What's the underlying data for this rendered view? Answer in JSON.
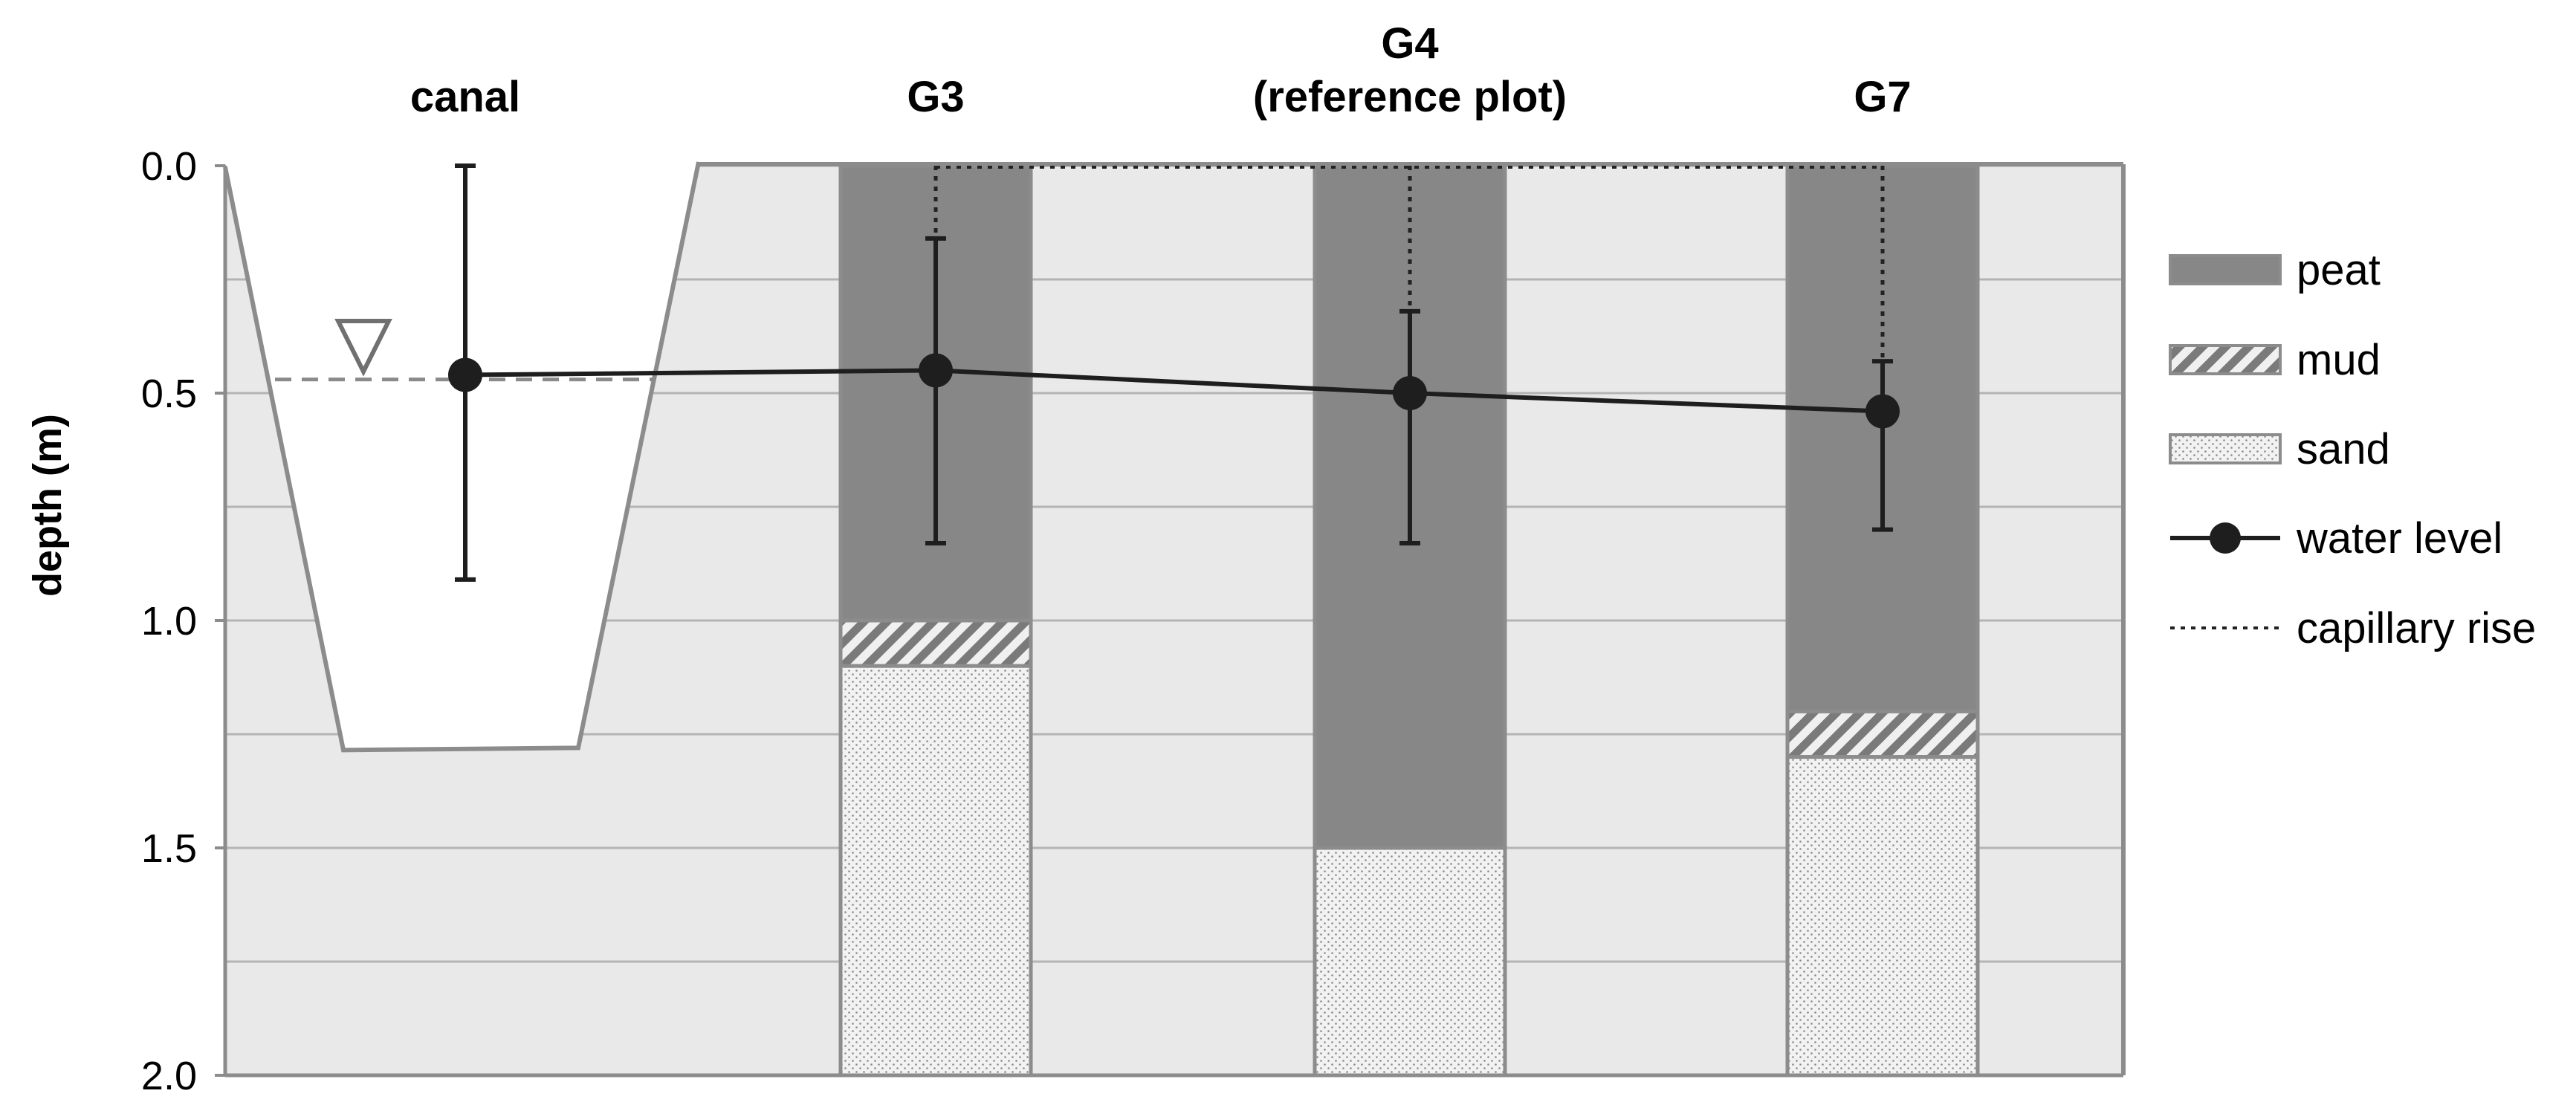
{
  "chart_data": {
    "type": "bar",
    "ylabel": "depth (m)",
    "ylim": [
      0,
      2
    ],
    "y_reversed": true,
    "yticks": [
      "0.0",
      "0.5",
      "1.0",
      "1.5",
      "2.0"
    ],
    "ytick_values": [
      0,
      0.5,
      1,
      1.5,
      2
    ],
    "minor_gridlines": [
      0.25,
      0.75,
      1.25,
      1.75
    ],
    "grid": true,
    "legend_placement": "right",
    "colors": {
      "background": "#e9e9e9",
      "peat": "#878787",
      "mud": "#878787",
      "sand": "#f2f2f2",
      "water_level": "#1e1e1e",
      "outline": "#8c8c8c"
    },
    "columns": [
      {
        "label_lines": [
          "canal"
        ]
      },
      {
        "label_lines": [
          "G3"
        ]
      },
      {
        "label_lines": [
          "G4",
          "(reference plot)"
        ]
      },
      {
        "label_lines": [
          "G7"
        ]
      }
    ],
    "canal": {
      "bottom_depth": 1.28,
      "water_surface_depth": 0.47
    },
    "soil_layers": [
      {
        "plot": "G3",
        "layers": [
          {
            "type": "peat",
            "top": 0,
            "bottom": 1.0
          },
          {
            "type": "mud",
            "top": 1.0,
            "bottom": 1.1
          },
          {
            "type": "sand",
            "top": 1.1,
            "bottom": 2.0
          }
        ]
      },
      {
        "plot": "G4",
        "layers": [
          {
            "type": "peat",
            "top": 0,
            "bottom": 1.5
          },
          {
            "type": "sand",
            "top": 1.5,
            "bottom": 2.0
          }
        ]
      },
      {
        "plot": "G7",
        "layers": [
          {
            "type": "peat",
            "top": 0,
            "bottom": 1.2
          },
          {
            "type": "mud",
            "top": 1.2,
            "bottom": 1.3
          },
          {
            "type": "sand",
            "top": 1.3,
            "bottom": 2.0
          }
        ]
      }
    ],
    "series": [
      {
        "name": "water level",
        "x": [
          "canal",
          "G3",
          "G4",
          "G7"
        ],
        "values": [
          0.46,
          0.45,
          0.5,
          0.54
        ],
        "error_min": [
          0.0,
          0.16,
          0.32,
          0.43
        ],
        "error_max": [
          0.91,
          0.83,
          0.83,
          0.8
        ]
      }
    ],
    "capillary_rise": [
      {
        "plot": "G3",
        "from": 0,
        "to": 0.16
      },
      {
        "plot": "G4",
        "from": 0,
        "to": 0.32
      },
      {
        "plot": "G7",
        "from": 0,
        "to": 0.43
      }
    ],
    "legend": [
      {
        "key": "peat",
        "label": "peat"
      },
      {
        "key": "mud",
        "label": "mud"
      },
      {
        "key": "sand",
        "label": "sand"
      },
      {
        "key": "water_level",
        "label": "water level"
      },
      {
        "key": "capillary_rise",
        "label": "capillary rise"
      }
    ]
  }
}
